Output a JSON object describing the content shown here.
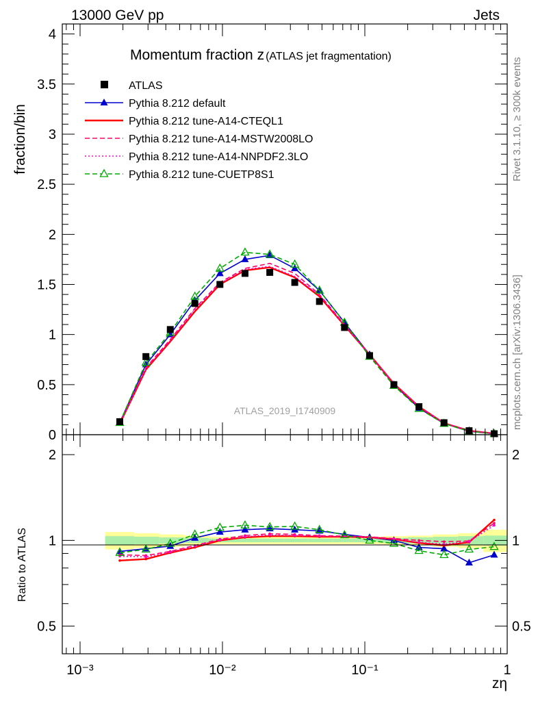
{
  "header": {
    "energy_label": "13000 GeV pp",
    "category_label": "Jets"
  },
  "side_labels": {
    "rivet": "Rivet 3.1.10, ≥ 300k events",
    "mcplots": "mcplots.cern.ch [arXiv:1306.3436]"
  },
  "chart_data": {
    "type": "line",
    "title_main": "Momentum fraction z",
    "title_sub": "(ATLAS jet fragmentation)",
    "analysis_id": "ATLAS_2019_I1740909",
    "xlabel": "zη",
    "ylabel": "fraction/bin",
    "ratio_ylabel": "Ratio to ATLAS",
    "x_scale": "log",
    "xlim": [
      0.00075,
      1.0
    ],
    "ylim": [
      0,
      4.1
    ],
    "ratio_ylim": [
      0.4,
      2.35
    ],
    "ratio_scale": "log",
    "x_ticks": [
      {
        "value": 0.001,
        "label": "10⁻³"
      },
      {
        "value": 0.01,
        "label": "10⁻²"
      },
      {
        "value": 0.1,
        "label": "10⁻¹"
      },
      {
        "value": 1,
        "label": "1"
      }
    ],
    "y_ticks": [
      {
        "value": 0,
        "label": "0"
      },
      {
        "value": 0.5,
        "label": "0.5"
      },
      {
        "value": 1,
        "label": "1"
      },
      {
        "value": 1.5,
        "label": "1.5"
      },
      {
        "value": 2,
        "label": "2"
      },
      {
        "value": 2.5,
        "label": "2.5"
      },
      {
        "value": 3,
        "label": "3"
      },
      {
        "value": 3.5,
        "label": "3.5"
      },
      {
        "value": 4,
        "label": "4"
      }
    ],
    "ratio_ticks": [
      {
        "value": 0.5,
        "label": "0.5"
      },
      {
        "value": 1,
        "label": "1"
      },
      {
        "value": 2,
        "label": "2"
      }
    ],
    "x": [
      0.0019,
      0.0029,
      0.0043,
      0.0064,
      0.0096,
      0.0144,
      0.0215,
      0.0322,
      0.048,
      0.072,
      0.108,
      0.16,
      0.24,
      0.36,
      0.54,
      0.81
    ],
    "data": {
      "name": "ATLAS",
      "values": [
        0.13,
        0.78,
        1.05,
        1.31,
        1.5,
        1.61,
        1.62,
        1.52,
        1.33,
        1.07,
        0.79,
        0.5,
        0.28,
        0.12,
        0.04,
        0.01
      ]
    },
    "series": [
      {
        "name": "Pythia 8.212 default",
        "color": "#0000cc",
        "style": "solid",
        "marker": "triangle-filled",
        "values": [
          0.12,
          0.7,
          1.0,
          1.34,
          1.61,
          1.75,
          1.79,
          1.66,
          1.44,
          1.12,
          0.8,
          0.5,
          0.265,
          0.112,
          0.034,
          0.009
        ],
        "ratio": [
          0.915,
          0.935,
          0.955,
          1.02,
          1.07,
          1.09,
          1.1,
          1.09,
          1.08,
          1.05,
          1.025,
          1.0,
          0.945,
          0.935,
          0.835,
          0.89
        ]
      },
      {
        "name": "Pythia 8.212 tune-A14-CTEQL1",
        "color": "#ff0000",
        "style": "solid",
        "marker": "none",
        "values": [
          0.11,
          0.65,
          0.93,
          1.23,
          1.5,
          1.64,
          1.67,
          1.57,
          1.38,
          1.09,
          0.8,
          0.51,
          0.28,
          0.115,
          0.04,
          0.012
        ],
        "ratio": [
          0.85,
          0.86,
          0.905,
          0.945,
          1.0,
          1.025,
          1.035,
          1.035,
          1.03,
          1.03,
          1.025,
          1.01,
          0.98,
          0.96,
          0.985,
          1.18
        ]
      },
      {
        "name": "Pythia 8.212 tune-A14-MSTW2008LO",
        "color": "#ff0066",
        "style": "dashed",
        "marker": "none",
        "values": [
          0.115,
          0.67,
          0.95,
          1.26,
          1.52,
          1.66,
          1.71,
          1.61,
          1.4,
          1.1,
          0.8,
          0.51,
          0.28,
          0.115,
          0.04,
          0.012
        ],
        "ratio": [
          0.89,
          0.885,
          0.915,
          0.96,
          1.01,
          1.04,
          1.055,
          1.05,
          1.04,
          1.035,
          1.03,
          1.015,
          1.0,
          0.99,
          0.995,
          1.15
        ]
      },
      {
        "name": "Pythia 8.212 tune-A14-NNPDF2.3LO",
        "color": "#ff00cc",
        "style": "dotted",
        "marker": "none",
        "values": [
          0.115,
          0.66,
          0.94,
          1.25,
          1.51,
          1.65,
          1.68,
          1.58,
          1.39,
          1.09,
          0.8,
          0.51,
          0.28,
          0.115,
          0.04,
          0.012
        ],
        "ratio": [
          0.88,
          0.875,
          0.91,
          0.955,
          1.005,
          1.03,
          1.045,
          1.04,
          1.035,
          1.03,
          1.025,
          1.01,
          0.985,
          0.97,
          0.99,
          1.13
        ]
      },
      {
        "name": "Pythia 8.212 tune-CUETP8S1",
        "color": "#00aa00",
        "style": "dashed",
        "marker": "triangle-open",
        "values": [
          0.12,
          0.72,
          1.02,
          1.38,
          1.66,
          1.82,
          1.8,
          1.7,
          1.44,
          1.12,
          0.78,
          0.49,
          0.26,
          0.11,
          0.035,
          0.009
        ],
        "ratio": [
          0.905,
          0.93,
          0.975,
          1.05,
          1.11,
          1.13,
          1.115,
          1.12,
          1.09,
          1.045,
          1.0,
          0.975,
          0.92,
          0.89,
          0.93,
          0.95
        ]
      }
    ],
    "ratio_band": {
      "x_edges": [
        0.0015,
        0.0024,
        0.0036,
        0.0054,
        0.008,
        0.012,
        0.018,
        0.027,
        0.04,
        0.06,
        0.09,
        0.135,
        0.2,
        0.3,
        0.45,
        0.68,
        1.0
      ],
      "inner_half_width": [
        0.035,
        0.03,
        0.025,
        0.02,
        0.015,
        0.015,
        0.015,
        0.015,
        0.015,
        0.015,
        0.015,
        0.02,
        0.025,
        0.03,
        0.035,
        0.04
      ],
      "outer_half_width": [
        0.07,
        0.06,
        0.05,
        0.04,
        0.03,
        0.03,
        0.03,
        0.03,
        0.03,
        0.03,
        0.03,
        0.035,
        0.04,
        0.05,
        0.06,
        0.09
      ]
    }
  }
}
